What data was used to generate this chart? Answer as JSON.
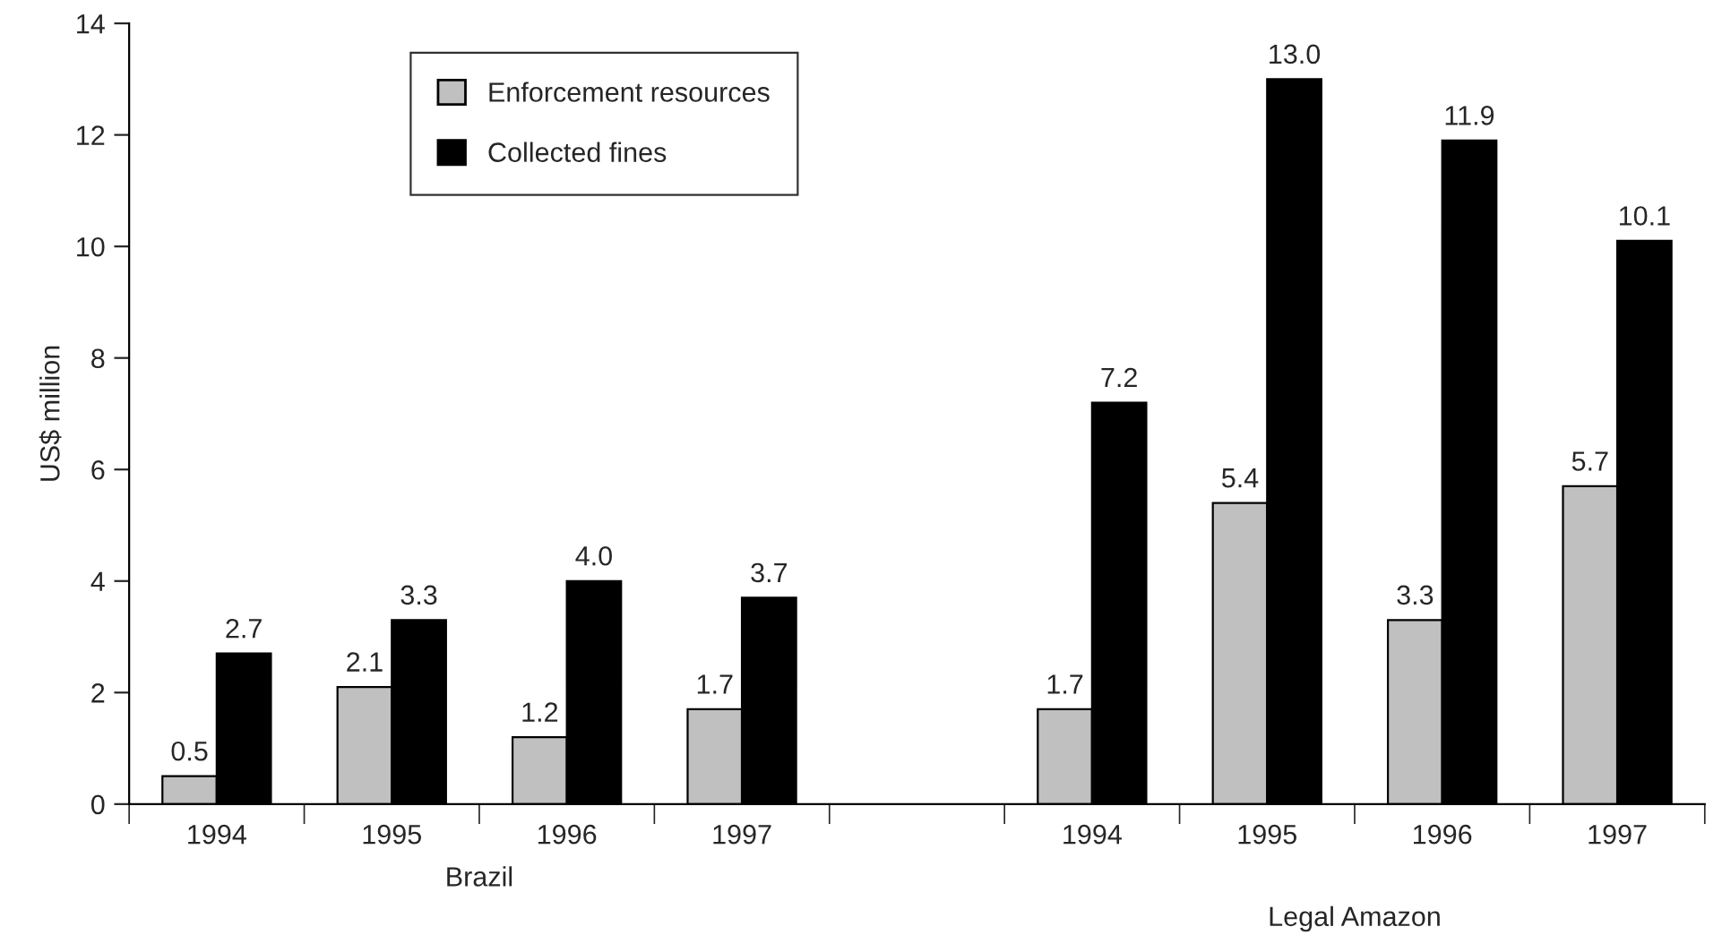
{
  "chart_data": {
    "type": "bar",
    "ylabel": "US$ million",
    "categories": [
      "1994",
      "1995",
      "1996",
      "1997",
      null,
      "1994",
      "1995",
      "1996",
      "1997"
    ],
    "series": [
      {
        "name": "Enforcement resources",
        "color": "#c0c0c0",
        "values": [
          0.5,
          2.1,
          1.2,
          1.7,
          null,
          1.7,
          5.4,
          3.3,
          5.7
        ],
        "value_labels": [
          "0.5",
          "2.1",
          "1.2",
          "1.7",
          null,
          "1.7",
          "5.4",
          "3.3",
          "5.7"
        ]
      },
      {
        "name": "Collected fines",
        "color": "#000000",
        "values": [
          2.7,
          3.3,
          4.0,
          3.7,
          null,
          7.2,
          13.0,
          11.9,
          10.1
        ],
        "value_labels": [
          "2.7",
          "3.3",
          "4.0",
          "3.7",
          null,
          "7.2",
          "13.0",
          "11.9",
          "10.1"
        ]
      }
    ],
    "ylim": [
      0,
      14
    ],
    "yticks": [
      0,
      2,
      4,
      6,
      8,
      10,
      12,
      14
    ],
    "legend": "top left",
    "grid": false,
    "annotations": [
      "Brazil",
      "Legal Amazon"
    ]
  }
}
